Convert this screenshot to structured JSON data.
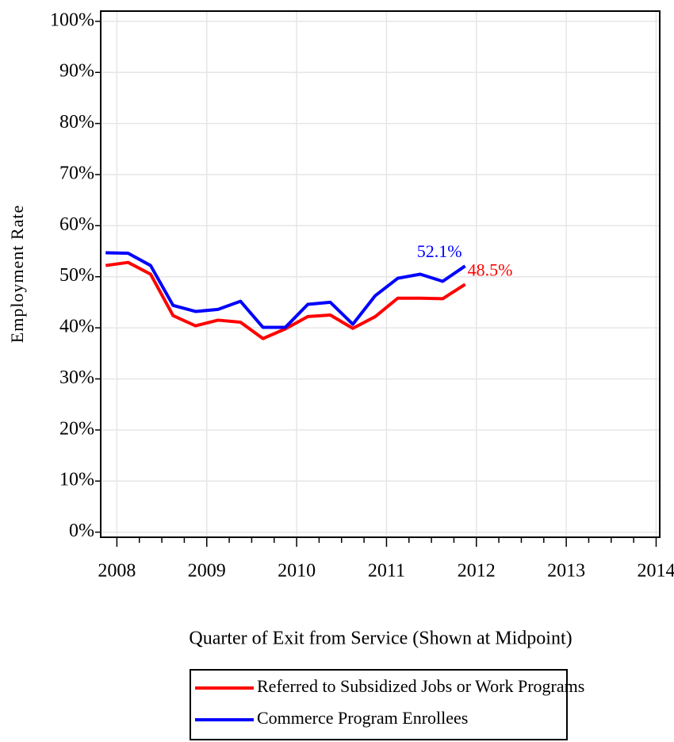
{
  "chart_data": {
    "type": "line",
    "x_label": "Quarter of Exit from Service (Shown at Midpoint)",
    "y_label": "Employment Rate",
    "x": [
      2007.875,
      2008.125,
      2008.375,
      2008.625,
      2008.875,
      2009.125,
      2009.375,
      2009.625,
      2009.875,
      2010.125,
      2010.375,
      2010.625,
      2010.875,
      2011.125,
      2011.375,
      2011.625,
      2011.875
    ],
    "series": [
      {
        "name": "Referred to Subsidized Jobs or Work Programs",
        "color": "#ff0000",
        "values": [
          52.2,
          52.8,
          50.5,
          42.4,
          40.4,
          41.5,
          41.1,
          37.9,
          39.8,
          42.2,
          42.5,
          39.9,
          42.2,
          45.8,
          45.8,
          45.7,
          48.5
        ],
        "value_labels": [
          null,
          null,
          null,
          null,
          null,
          null,
          null,
          null,
          null,
          null,
          null,
          null,
          null,
          null,
          null,
          null,
          "48.5%"
        ]
      },
      {
        "name": "Commerce Program Enrollees",
        "color": "#0000ff",
        "values": [
          54.7,
          54.6,
          52.2,
          44.4,
          43.2,
          43.6,
          45.2,
          40.1,
          40.1,
          44.6,
          45.0,
          40.7,
          46.3,
          49.7,
          50.5,
          49.1,
          52.1
        ],
        "value_labels": [
          null,
          null,
          null,
          null,
          null,
          null,
          null,
          null,
          null,
          null,
          null,
          null,
          null,
          null,
          null,
          null,
          "52.1%"
        ]
      }
    ],
    "xlim": [
      2007.82,
      2014.04
    ],
    "xticks": [
      2008,
      2009,
      2010,
      2011,
      2012,
      2013,
      2014
    ],
    "xminorticks": [
      2008.25,
      2008.5,
      2008.75,
      2009.25,
      2009.5,
      2009.75,
      2010.25,
      2010.5,
      2010.75,
      2011.25,
      2011.5,
      2011.75,
      2012.25,
      2012.5,
      2012.75,
      2013.25,
      2013.5,
      2013.75
    ],
    "ylim": [
      -1,
      102
    ],
    "yticks": [
      {
        "value": 0,
        "label": "0%"
      },
      {
        "value": 10,
        "label": "10%"
      },
      {
        "value": 20,
        "label": "20%"
      },
      {
        "value": 30,
        "label": "30%"
      },
      {
        "value": 40,
        "label": "40%"
      },
      {
        "value": 50,
        "label": "50%"
      },
      {
        "value": 60,
        "label": "60%"
      },
      {
        "value": 70,
        "label": "70%"
      },
      {
        "value": 80,
        "label": "80%"
      },
      {
        "value": 90,
        "label": "90%"
      },
      {
        "value": 100,
        "label": "100%"
      }
    ],
    "grid": true,
    "legend": "bottom"
  }
}
